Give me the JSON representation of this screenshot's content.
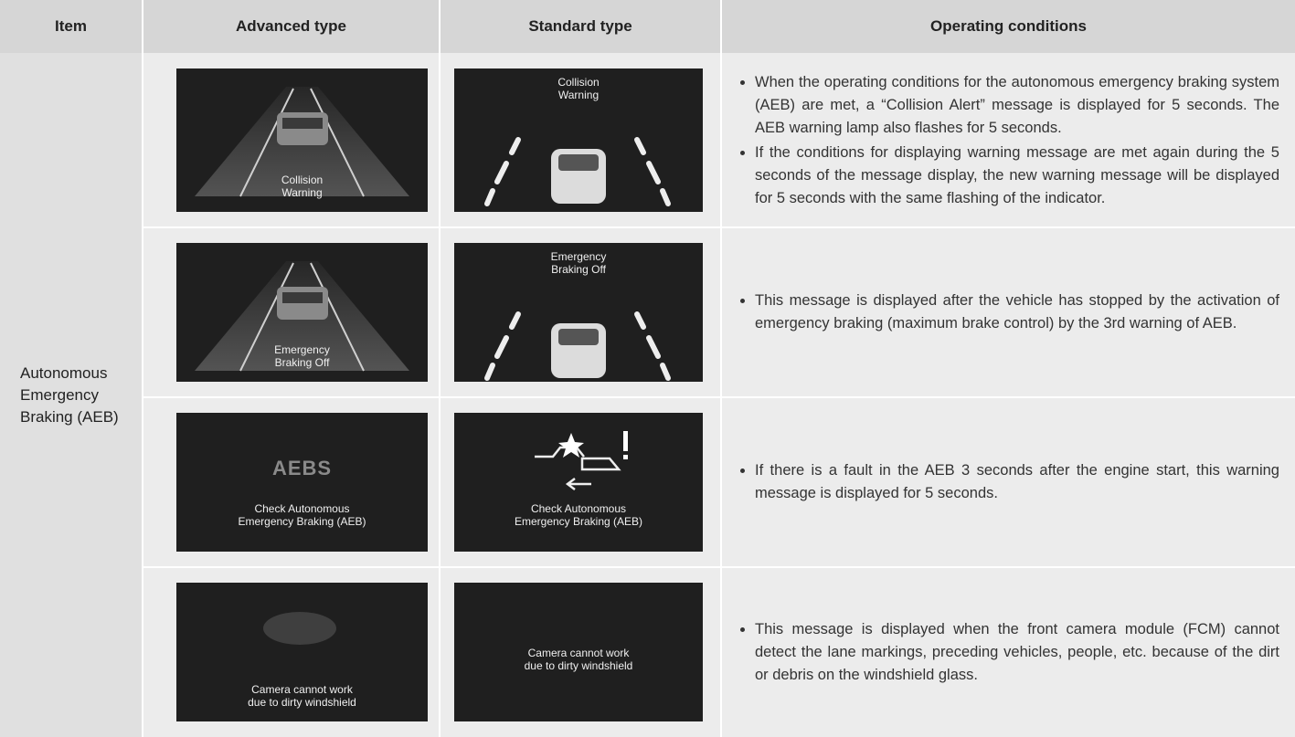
{
  "header": {
    "item": "Item",
    "advanced": "Advanced type",
    "standard": "Standard type",
    "conditions": "Operating conditions"
  },
  "item": [
    "Autonomous",
    "Emergency",
    "Braking (AEB)"
  ],
  "rows": [
    {
      "advanced": {
        "caption": [
          "Collision",
          "Warning"
        ]
      },
      "standard": {
        "caption": [
          "Collision",
          "Warning"
        ]
      },
      "conditions": [
        "When the operating conditions for the autonomous emergency braking system (AEB) are met, a “Collision Alert” message is displayed for 5 seconds. The AEB warning lamp also flashes for 5 seconds.",
        "If the conditions for displaying warning message are met again during the 5 seconds of the message display, the new warning message will be displayed for 5 seconds with the same flashing of the indicator."
      ]
    },
    {
      "advanced": {
        "caption": [
          "Emergency",
          "Braking Off"
        ]
      },
      "standard": {
        "caption": [
          "Emergency",
          "Braking Off"
        ]
      },
      "conditions": [
        "This message is displayed after the vehicle has stopped by the activation of emergency braking (maximum brake control) by the 3rd warning of AEB."
      ]
    },
    {
      "advanced": {
        "icon_text": "AEBS",
        "caption": [
          "Check Autonomous",
          "Emergency Braking (AEB)"
        ]
      },
      "standard": {
        "caption": [
          "Check Autonomous",
          "Emergency Braking (AEB)"
        ]
      },
      "conditions": [
        "If there is a fault in the AEB 3 seconds after the engine start, this warning message is displayed for 5 seconds."
      ]
    },
    {
      "advanced": {
        "caption": [
          "Camera cannot work",
          "due to dirty windshield"
        ]
      },
      "standard": {
        "caption": [
          "Camera cannot work",
          "due to dirty windshield"
        ]
      },
      "conditions": [
        "This message is displayed when the front camera module (FCM) cannot detect the lane markings, preceding vehicles, people, etc. because of the dirt or debris on the windshield glass."
      ]
    }
  ]
}
